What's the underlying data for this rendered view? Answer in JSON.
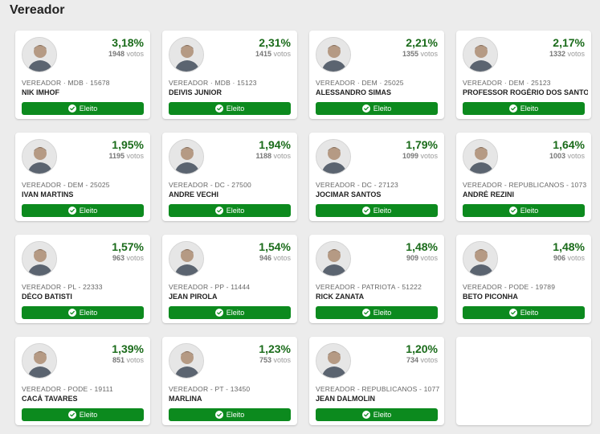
{
  "page": {
    "title": "Vereador"
  },
  "votes_suffix": "votos",
  "elected_label": "Eleito",
  "colors": {
    "accent": "#0c8a1e",
    "percent": "#1a6b1a"
  },
  "candidates": [
    {
      "pct": "3,18%",
      "votes": "1948",
      "info": "VEREADOR · MDB · 15678",
      "name": "NIK IMHOF"
    },
    {
      "pct": "2,31%",
      "votes": "1415",
      "info": "VEREADOR · MDB · 15123",
      "name": "DEIVIS JUNIOR"
    },
    {
      "pct": "2,21%",
      "votes": "1355",
      "info": "VEREADOR · DEM · 25025",
      "name": "ALESSANDRO SIMAS"
    },
    {
      "pct": "2,17%",
      "votes": "1332",
      "info": "VEREADOR · DEM · 25123",
      "name": "PROFESSOR ROGÉRIO DOS SANTOS"
    },
    {
      "pct": "1,95%",
      "votes": "1195",
      "info": "VEREADOR - DEM - 25025",
      "name": "IVAN MARTINS"
    },
    {
      "pct": "1,94%",
      "votes": "1188",
      "info": "VEREADOR - DC - 27500",
      "name": "ANDRE VECHI"
    },
    {
      "pct": "1,79%",
      "votes": "1099",
      "info": "VEREADOR - DC - 27123",
      "name": "JOCIMAR SANTOS"
    },
    {
      "pct": "1,64%",
      "votes": "1003",
      "info": "VEREADOR - REPUBLICANOS - 10739",
      "name": "ANDRÉ REZINI"
    },
    {
      "pct": "1,57%",
      "votes": "963",
      "info": "VEREADOR - PL - 22333",
      "name": "DÉCO BATISTI"
    },
    {
      "pct": "1,54%",
      "votes": "946",
      "info": "VEREADOR - PP - 11444",
      "name": "JEAN PIROLA"
    },
    {
      "pct": "1,48%",
      "votes": "909",
      "info": "VEREADOR - PATRIOTA - 51222",
      "name": "RICK ZANATA"
    },
    {
      "pct": "1,48%",
      "votes": "906",
      "info": "VEREADOR - PODE - 19789",
      "name": "BETO PICONHA"
    },
    {
      "pct": "1,39%",
      "votes": "851",
      "info": "VEREADOR - PODE - 19111",
      "name": "CACÁ TAVARES"
    },
    {
      "pct": "1,23%",
      "votes": "753",
      "info": "VEREADOR - PT - 13450",
      "name": "MARLINA"
    },
    {
      "pct": "1,20%",
      "votes": "734",
      "info": "VEREADOR - REPUBLICANOS - 10777",
      "name": "JEAN DALMOLIN"
    }
  ]
}
